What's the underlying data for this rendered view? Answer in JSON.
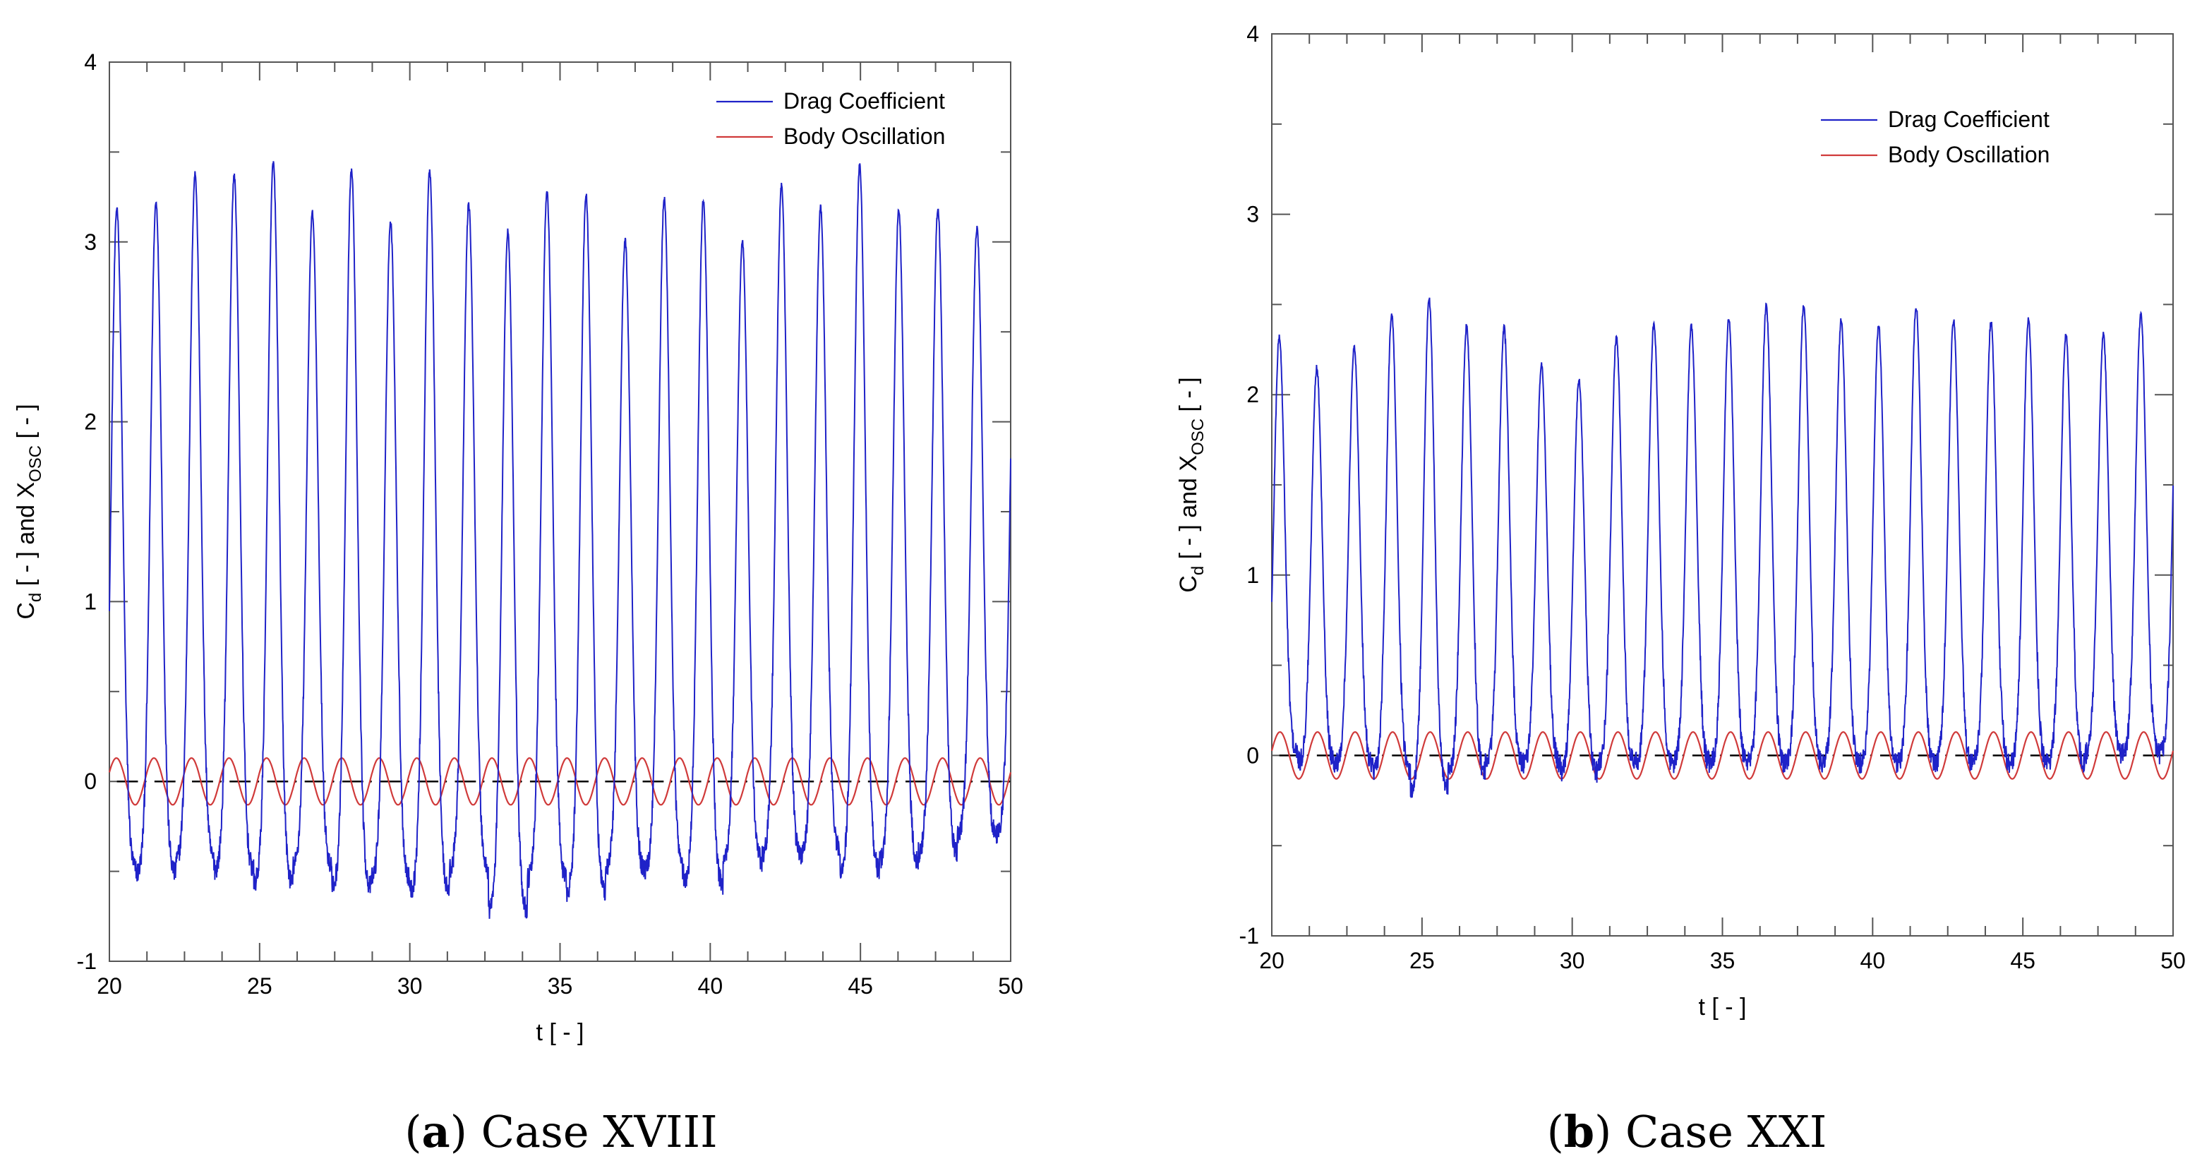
{
  "chart_data": [
    {
      "type": "line",
      "panel": "a",
      "caption_letter": "a",
      "caption_text": "Case XVIII",
      "xlabel": "t [ - ]",
      "ylabel_main": "C",
      "ylabel_sub_d": "d",
      "ylabel_mid": " [ - ] and X",
      "ylabel_sub_osc": "OSC",
      "ylabel_end": " [ - ]",
      "xlim": [
        20,
        50
      ],
      "ylim": [
        -1,
        4
      ],
      "x_ticks": [
        "20",
        "25",
        "30",
        "35",
        "40",
        "45",
        "50"
      ],
      "y_ticks": [
        "-1",
        "0",
        "1",
        "2",
        "3",
        "4"
      ],
      "legend": [
        "Drag Coefficient",
        "Body Oscillation"
      ],
      "series": [
        {
          "name": "Drag Coefficient",
          "color": "#1f22c8",
          "approx_period": 1.25,
          "peak_values": [
            3.19,
            3.22,
            3.38,
            3.37,
            3.44,
            3.16,
            3.4,
            3.11,
            3.4,
            3.21,
            3.06,
            3.28,
            3.26,
            3.01,
            3.24,
            3.23,
            3.0,
            3.32,
            3.19,
            3.43,
            3.18,
            3.19,
            3.08
          ],
          "trough_values": [
            -0.5,
            -0.52,
            -0.45,
            -0.5,
            -0.58,
            -0.48,
            -0.6,
            -0.55,
            -0.62,
            -0.5,
            -0.72,
            -0.55,
            -0.62,
            -0.5,
            -0.5,
            -0.58,
            -0.45,
            -0.42,
            -0.4,
            -0.5,
            -0.45,
            -0.4,
            -0.3
          ]
        },
        {
          "name": "Body Oscillation",
          "color": "#d03a3a",
          "amplitude": 0.13,
          "period": 1.25
        }
      ]
    },
    {
      "type": "line",
      "panel": "b",
      "caption_letter": "b",
      "caption_text": "Case XXI",
      "xlabel": "t [ - ]",
      "ylabel_main": "C",
      "ylabel_sub_d": "d",
      "ylabel_mid": " [ - ] and X",
      "ylabel_sub_osc": "OSC",
      "ylabel_end": " [ - ]",
      "xlim": [
        20,
        50
      ],
      "ylim": [
        -1,
        4
      ],
      "x_ticks": [
        "20",
        "25",
        "30",
        "35",
        "40",
        "45",
        "50"
      ],
      "y_ticks": [
        "-1",
        "0",
        "1",
        "2",
        "3",
        "4"
      ],
      "legend": [
        "Drag Coefficient",
        "Body Oscillation"
      ],
      "series": [
        {
          "name": "Drag Coefficient",
          "color": "#1f22c8",
          "approx_period": 1.25,
          "peak_values": [
            2.32,
            2.15,
            2.26,
            2.45,
            2.53,
            2.38,
            2.37,
            2.16,
            2.08,
            2.32,
            2.39,
            2.38,
            2.42,
            2.49,
            2.5,
            2.41,
            2.38,
            2.49,
            2.41,
            2.4,
            2.42,
            2.33,
            2.33,
            2.45
          ],
          "trough_values": [
            0.0,
            -0.05,
            -0.05,
            -0.1,
            -0.2,
            -0.1,
            -0.05,
            -0.05,
            -0.1,
            -0.05,
            -0.05,
            -0.05,
            -0.05,
            -0.05,
            -0.05,
            -0.05,
            -0.05,
            -0.05,
            -0.05,
            -0.05,
            -0.05,
            -0.05,
            0.0,
            0.0
          ]
        },
        {
          "name": "Body Oscillation",
          "color": "#d03a3a",
          "amplitude": 0.13,
          "period": 1.25
        }
      ]
    }
  ]
}
